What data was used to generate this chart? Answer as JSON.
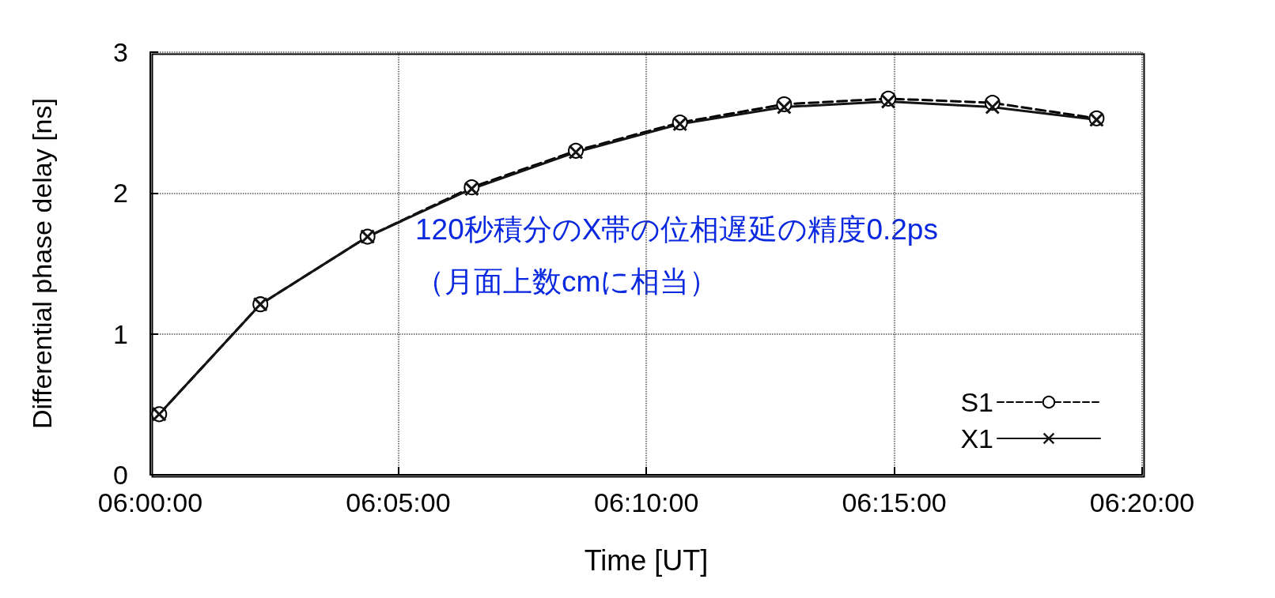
{
  "chart_data": {
    "type": "line",
    "xlabel": "Time [UT]",
    "ylabel": "Differential phase delay [ns]",
    "x": [
      6.003,
      6.037,
      6.073,
      6.108,
      6.143,
      6.178,
      6.213,
      6.248,
      6.283,
      6.318
    ],
    "series": [
      {
        "name": "S1",
        "color": "#000000",
        "marker": "circle",
        "line_style": "dashed",
        "values": [
          0.43,
          1.21,
          1.69,
          2.04,
          2.3,
          2.5,
          2.63,
          2.67,
          2.64,
          2.53
        ]
      },
      {
        "name": "X1",
        "color": "#141414",
        "marker": "cross",
        "line_style": "solid",
        "values": [
          0.43,
          1.21,
          1.69,
          2.03,
          2.29,
          2.49,
          2.61,
          2.65,
          2.61,
          2.52
        ]
      }
    ],
    "xlim": [
      6,
      6.3333
    ],
    "xticks": [
      {
        "value": 6,
        "label": "06:00:00"
      },
      {
        "value": 6.0833,
        "label": "06:05:00"
      },
      {
        "value": 6.1667,
        "label": "06:10:00"
      },
      {
        "value": 6.25,
        "label": "06:15:00"
      },
      {
        "value": 6.3333,
        "label": "06:20:00"
      }
    ],
    "ylim": [
      0,
      3
    ],
    "yticks": [
      0,
      1,
      2,
      3
    ],
    "grid": true,
    "legend": "bottom right",
    "annotations": [
      "120秒積分のX帯の位相遅延の精度0.2ps",
      "（月面上数cmに相当）"
    ]
  }
}
